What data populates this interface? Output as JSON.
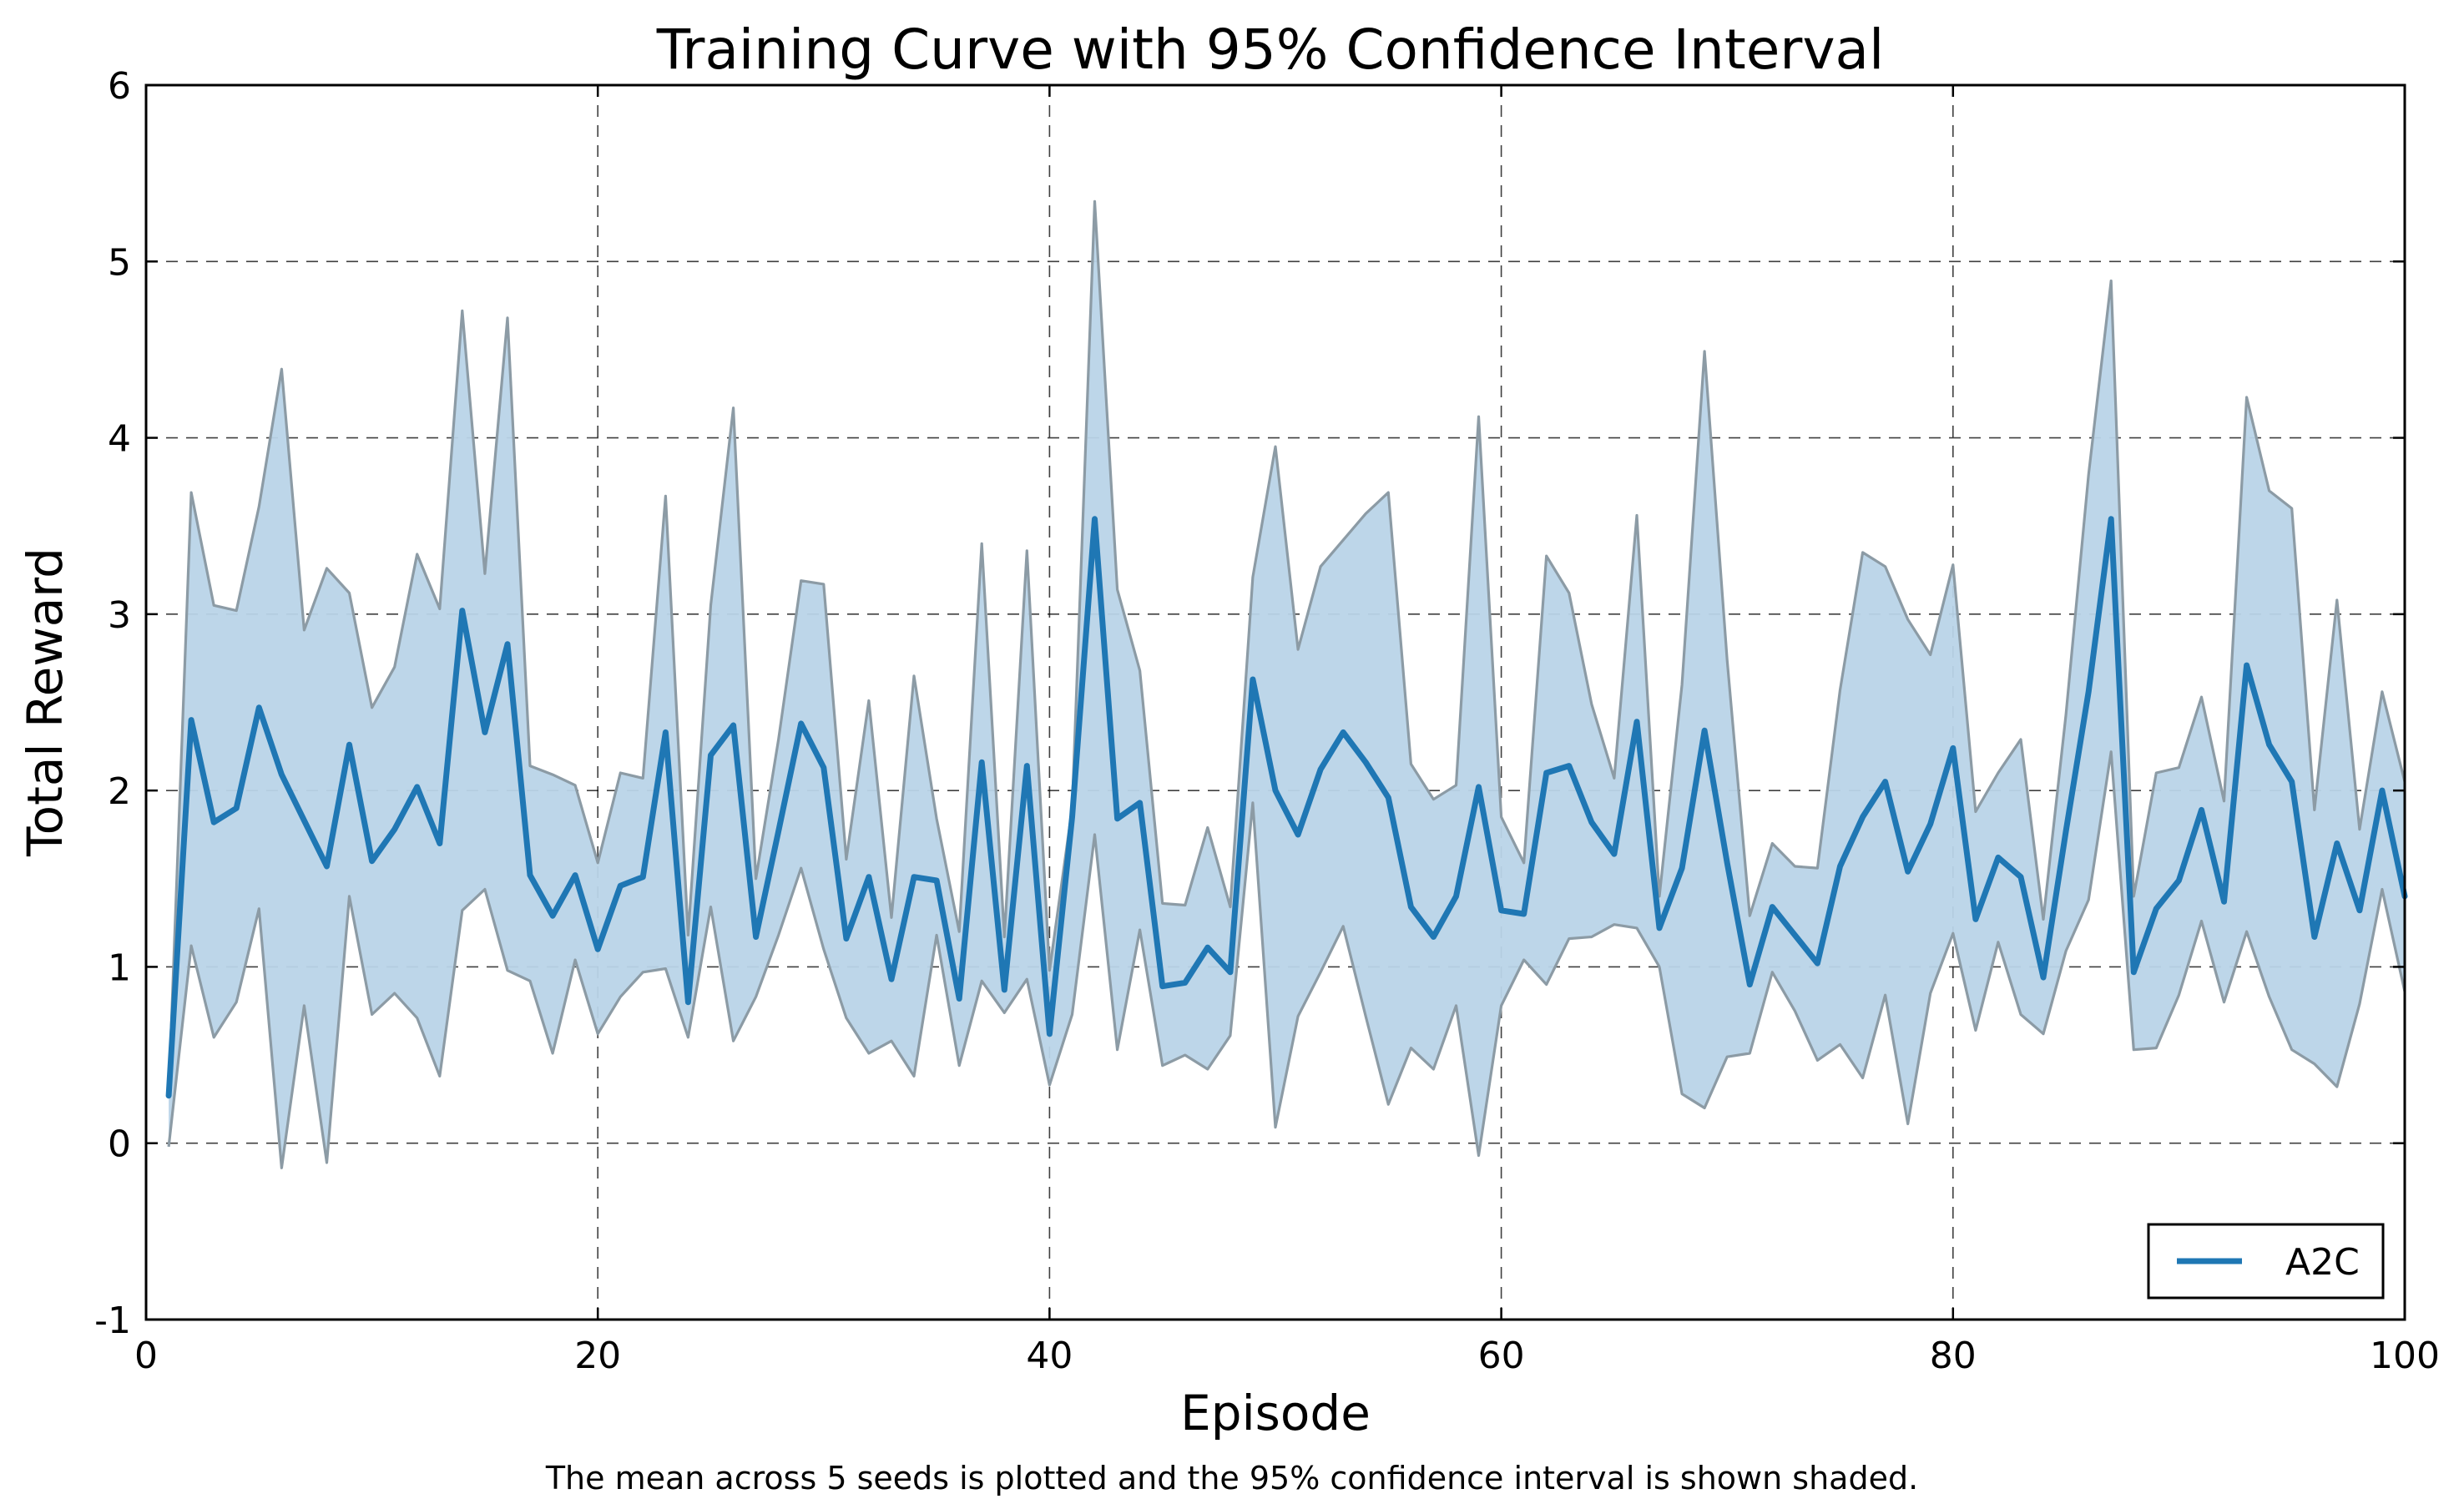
{
  "chart_data": {
    "type": "line",
    "title": "Training Curve with 95% Confidence Interval",
    "xlabel": "Episode",
    "ylabel": "Total Reward",
    "caption": "The mean across 5 seeds is plotted and the 95% confidence interval is shown shaded.",
    "xlim": [
      0,
      100
    ],
    "ylim": [
      -1,
      6
    ],
    "x_ticks": [
      0,
      20,
      40,
      60,
      80,
      100
    ],
    "x_tick_labels": [
      "0",
      "20",
      "40",
      "60",
      "80",
      "100"
    ],
    "y_ticks": [
      -1,
      0,
      1,
      2,
      3,
      4,
      5,
      6
    ],
    "y_tick_labels": [
      "-1",
      "0",
      "1",
      "2",
      "3",
      "4",
      "5",
      "6"
    ],
    "grid": true,
    "grid_style": "dashed",
    "legend_position": "bottom-right",
    "series": [
      {
        "name": "A2C",
        "color": "#1f77b4",
        "band_color": "#b9d4e8",
        "band_edge_color": "#8c9ba5",
        "x": [
          1,
          2,
          3,
          4,
          5,
          6,
          7,
          8,
          9,
          10,
          11,
          12,
          13,
          14,
          15,
          16,
          17,
          18,
          19,
          20,
          21,
          22,
          23,
          24,
          25,
          26,
          27,
          28,
          29,
          30,
          31,
          32,
          33,
          34,
          35,
          36,
          37,
          38,
          39,
          40,
          41,
          42,
          43,
          44,
          45,
          46,
          47,
          48,
          49,
          50,
          51,
          52,
          53,
          54,
          55,
          56,
          57,
          58,
          59,
          60,
          61,
          62,
          63,
          64,
          65,
          66,
          67,
          68,
          69,
          70,
          71,
          72,
          73,
          74,
          75,
          76,
          77,
          78,
          79,
          80,
          81,
          82,
          83,
          84,
          85,
          86,
          87,
          88,
          89,
          90,
          91,
          92,
          93,
          94,
          95,
          96,
          97,
          98,
          99,
          100
        ],
        "mean": [
          0.27,
          2.4,
          1.82,
          1.9,
          2.47,
          2.09,
          1.83,
          1.57,
          2.26,
          1.6,
          1.78,
          2.02,
          1.7,
          3.02,
          2.33,
          2.83,
          1.52,
          1.29,
          1.52,
          1.1,
          1.46,
          1.51,
          2.33,
          0.8,
          2.2,
          2.37,
          1.17,
          1.77,
          2.38,
          2.13,
          1.16,
          1.51,
          0.93,
          1.51,
          1.49,
          0.82,
          2.16,
          0.87,
          2.14,
          0.62,
          1.85,
          3.54,
          1.84,
          1.93,
          0.89,
          0.91,
          1.11,
          0.97,
          2.63,
          2.0,
          1.75,
          2.12,
          2.33,
          2.16,
          1.96,
          1.34,
          1.17,
          1.4,
          2.02,
          1.32,
          1.3,
          2.1,
          2.14,
          1.82,
          1.64,
          2.39,
          1.22,
          1.56,
          2.34,
          1.59,
          0.9,
          1.34,
          1.18,
          1.02,
          1.57,
          1.85,
          2.05,
          1.54,
          1.81,
          2.24,
          1.27,
          1.62,
          1.51,
          0.94,
          1.77,
          2.56,
          3.54,
          0.97,
          1.33,
          1.49,
          1.89,
          1.37,
          2.71,
          2.26,
          2.05,
          1.17,
          1.7,
          1.32,
          2.0,
          1.4
        ],
        "upper": [
          0.27,
          3.69,
          3.05,
          3.02,
          3.61,
          4.39,
          2.91,
          3.26,
          3.12,
          2.47,
          2.7,
          3.34,
          3.03,
          4.72,
          3.23,
          4.68,
          2.14,
          2.09,
          2.03,
          1.59,
          2.1,
          2.07,
          3.67,
          1.18,
          3.05,
          4.17,
          1.5,
          2.29,
          3.19,
          3.17,
          1.61,
          2.51,
          1.28,
          2.65,
          1.84,
          1.2,
          3.4,
          1.17,
          3.36,
          0.98,
          1.9,
          5.34,
          3.14,
          2.68,
          1.36,
          1.35,
          1.79,
          1.34,
          3.21,
          3.95,
          2.8,
          3.27,
          3.42,
          3.57,
          3.69,
          2.15,
          1.95,
          2.03,
          4.12,
          1.85,
          1.59,
          3.33,
          3.12,
          2.49,
          2.07,
          3.56,
          1.4,
          2.6,
          4.49,
          2.74,
          1.29,
          1.7,
          1.57,
          1.56,
          2.57,
          3.35,
          3.27,
          2.97,
          2.77,
          3.28,
          1.88,
          2.1,
          2.29,
          1.27,
          2.43,
          3.79,
          4.89,
          1.4,
          2.1,
          2.13,
          2.53,
          1.94,
          4.23,
          3.7,
          3.6,
          1.89,
          3.08,
          1.78,
          2.56,
          2.05
        ],
        "lower": [
          -0.02,
          1.12,
          0.6,
          0.8,
          1.33,
          -0.14,
          0.78,
          -0.11,
          1.4,
          0.73,
          0.85,
          0.71,
          0.38,
          1.32,
          1.44,
          0.98,
          0.92,
          0.51,
          1.04,
          0.62,
          0.83,
          0.97,
          0.99,
          0.6,
          1.34,
          0.58,
          0.83,
          1.18,
          1.56,
          1.1,
          0.71,
          0.51,
          0.58,
          0.38,
          1.18,
          0.44,
          0.92,
          0.74,
          0.93,
          0.33,
          0.73,
          1.75,
          0.53,
          1.21,
          0.44,
          0.5,
          0.42,
          0.61,
          1.93,
          0.09,
          0.72,
          0.97,
          1.23,
          0.72,
          0.22,
          0.54,
          0.42,
          0.78,
          -0.07,
          0.78,
          1.04,
          0.9,
          1.16,
          1.17,
          1.24,
          1.22,
          1.0,
          0.28,
          0.2,
          0.49,
          0.51,
          0.97,
          0.75,
          0.47,
          0.56,
          0.37,
          0.84,
          0.11,
          0.85,
          1.19,
          0.64,
          1.14,
          0.73,
          0.62,
          1.09,
          1.38,
          2.22,
          0.53,
          0.54,
          0.84,
          1.26,
          0.8,
          1.2,
          0.83,
          0.53,
          0.45,
          0.32,
          0.79,
          1.44,
          0.86
        ]
      }
    ]
  }
}
